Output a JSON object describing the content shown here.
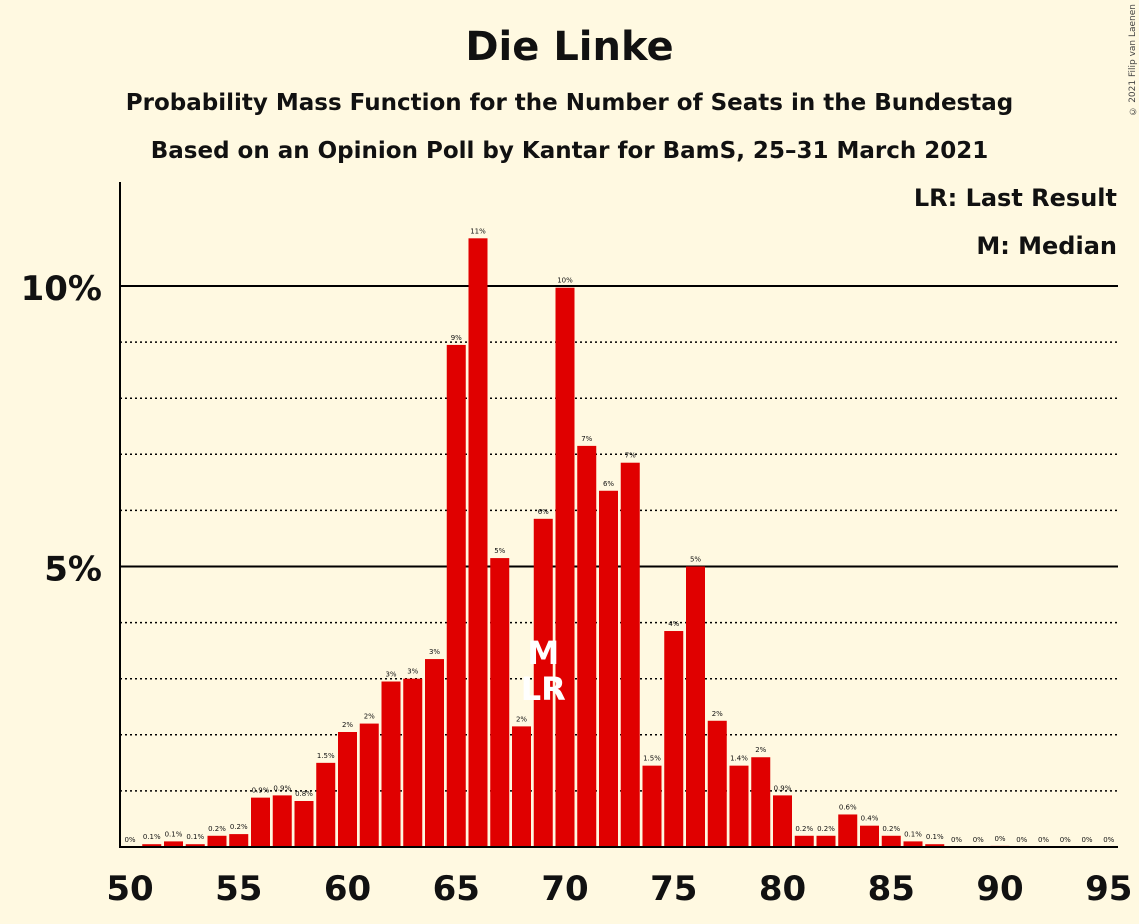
{
  "chart_data": {
    "type": "bar",
    "title": "Die Linke",
    "subtitle": "Probability Mass Function for the Number of Seats in the Bundestag",
    "subtitle2": "Based on an Opinion Poll by Kantar for BamS, 25–31 March 2021",
    "copyright": "© 2021 Filip van Laenen",
    "legend": {
      "placement": "top-right",
      "lr": "LR: Last Result",
      "m": "M: Median"
    },
    "x": [
      50,
      51,
      52,
      53,
      54,
      55,
      56,
      57,
      58,
      59,
      60,
      61,
      62,
      63,
      64,
      65,
      66,
      67,
      68,
      69,
      70,
      71,
      72,
      73,
      74,
      75,
      76,
      77,
      78,
      79,
      80,
      81,
      82,
      83,
      84,
      85,
      86,
      87,
      88,
      89,
      90,
      91,
      92,
      93,
      94,
      95
    ],
    "values": [
      0,
      0.05,
      0.1,
      0.05,
      0.2,
      0.23,
      0.88,
      0.92,
      0.82,
      1.5,
      2.05,
      2.2,
      2.95,
      3.0,
      3.35,
      8.95,
      10.85,
      5.15,
      2.15,
      5.85,
      9.97,
      7.15,
      6.35,
      6.85,
      1.45,
      3.85,
      5.0,
      2.25,
      1.45,
      1.6,
      0.92,
      0.2,
      0.2,
      0.58,
      0.38,
      0.2,
      0.1,
      0.05,
      0,
      0,
      0.02,
      0,
      0,
      0,
      0,
      0
    ],
    "value_labels": [
      "0%",
      "0.1%",
      "0.1%",
      "0.1%",
      "0.2%",
      "0.2%",
      "0.9%",
      "0.9%",
      "0.8%",
      "1.5%",
      "2%",
      "2%",
      "3%",
      "3%",
      "3%",
      "9%",
      "11%",
      "5%",
      "2%",
      "6%",
      "10%",
      "7%",
      "6%",
      "7%",
      "1.5%",
      "4%",
      "5%",
      "2%",
      "1.4%",
      "2%",
      "0.9%",
      "0.2%",
      "0.2%",
      "0.6%",
      "0.4%",
      "0.2%",
      "0.1%",
      "0.1%",
      "0%",
      "0%",
      "0%",
      "0%",
      "0%",
      "0%",
      "0%",
      "0%"
    ],
    "x_ticks": [
      50,
      55,
      60,
      65,
      70,
      75,
      80,
      85,
      90,
      95
    ],
    "y_ticks": [
      {
        "value": 5,
        "label": "5%"
      },
      {
        "value": 10,
        "label": "10%"
      }
    ],
    "y_minor_gridlines": [
      1,
      2,
      3,
      4,
      6,
      7,
      8,
      9
    ],
    "ylim": [
      0,
      12
    ],
    "xlabel": "",
    "ylabel": "",
    "median_seat": 69,
    "median_label": "M",
    "last_result_seat": 69,
    "last_result_label": "LR",
    "grid": true,
    "colors": {
      "bar": "#e00000",
      "background": "#fff9e1",
      "axis": "#000000"
    }
  }
}
